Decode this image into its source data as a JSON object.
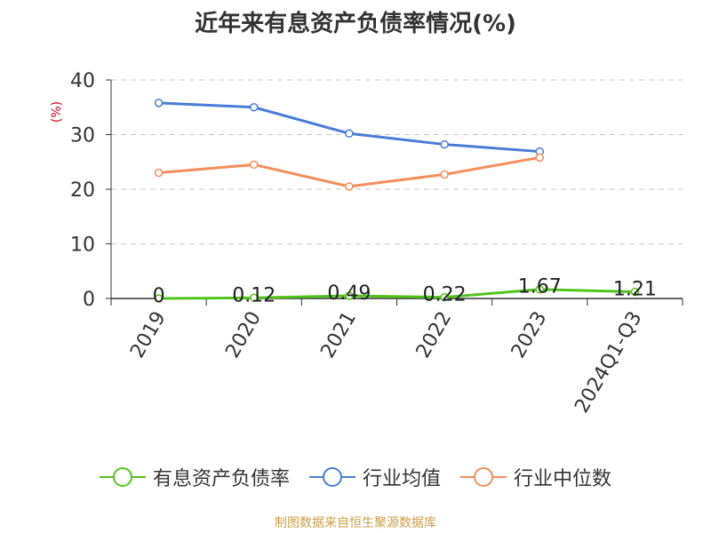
{
  "title": "近年来有息资产负债率情况(%)",
  "source": "制图数据来自恒生聚源数据库",
  "chart_data": {
    "type": "line",
    "title": "近年来有息资产负债率情况(%)",
    "ylabel": "(%)",
    "xlabel": "",
    "categories": [
      "2019",
      "2020",
      "2021",
      "2022",
      "2023",
      "2024Q1-Q3"
    ],
    "ylim": [
      0,
      40
    ],
    "yticks": [
      0,
      10,
      20,
      30,
      40
    ],
    "grid": true,
    "legend_position": "bottom",
    "series": [
      {
        "name": "有息资产负债率",
        "color": "#52c41a",
        "values": [
          0,
          0.12,
          0.49,
          0.22,
          1.67,
          1.21
        ],
        "labels": [
          "0",
          "0.12",
          "0.49",
          "0.22",
          "1.67",
          "1.21"
        ]
      },
      {
        "name": "行业均值",
        "color": "#4a7bd6",
        "values": [
          35.8,
          35.0,
          30.2,
          28.2,
          26.9,
          null
        ]
      },
      {
        "name": "行业中位数",
        "color": "#f58d5b",
        "values": [
          23.0,
          24.5,
          20.5,
          22.7,
          25.8,
          null
        ]
      }
    ]
  }
}
